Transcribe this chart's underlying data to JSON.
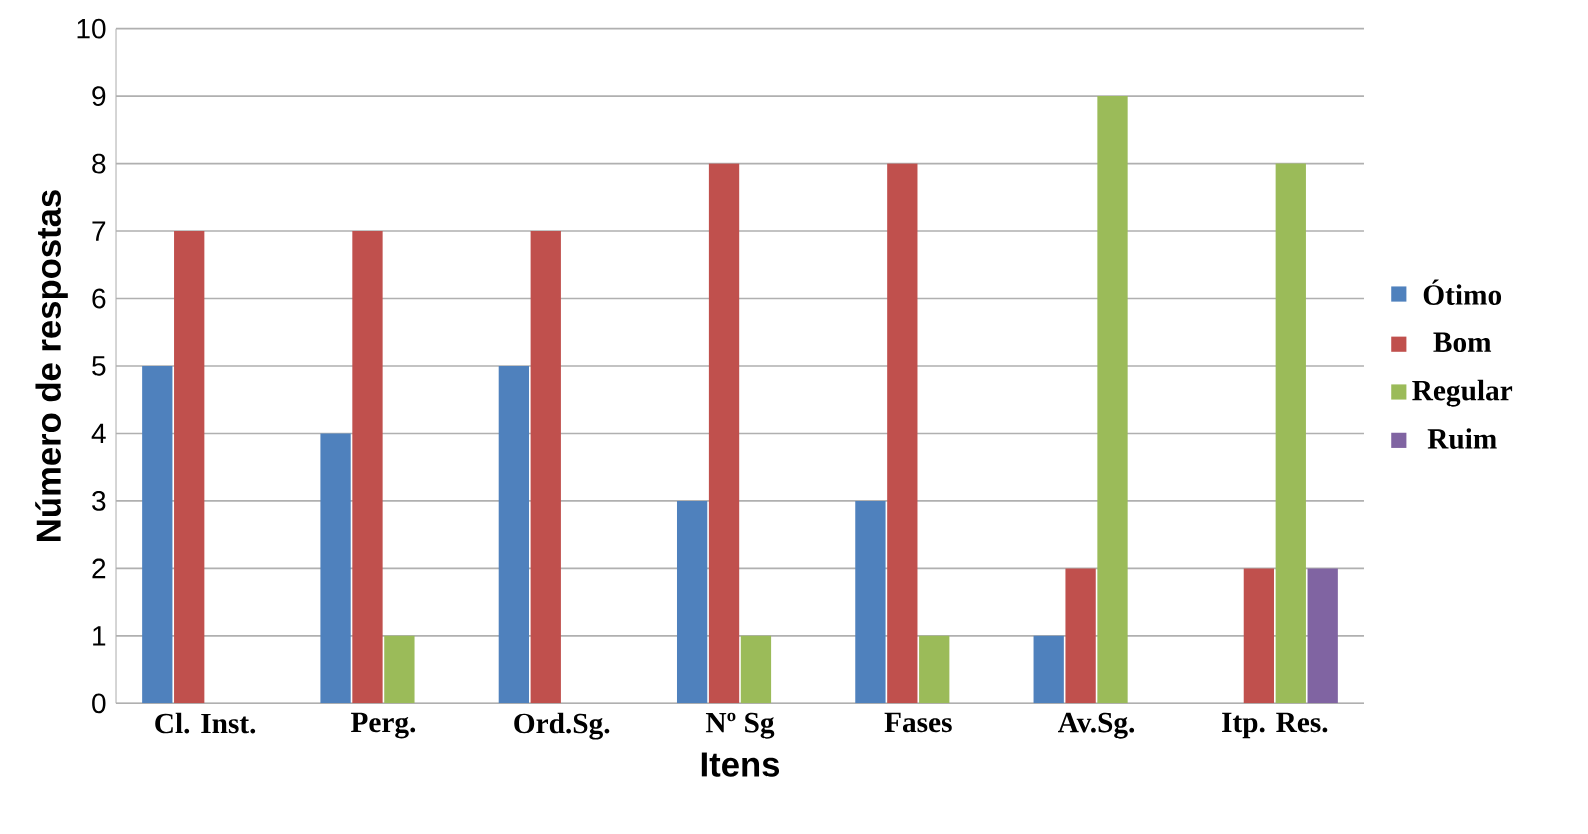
{
  "chart_data": {
    "type": "bar",
    "xlabel": "Itens",
    "ylabel": "Número de respostas",
    "categories": [
      "Cl. Inst.",
      "Perg.",
      "Ord.Sg.",
      "Nº Sg",
      "Fases",
      "Av.Sg.",
      "Itp. Res."
    ],
    "series": [
      {
        "name": "Ótimo",
        "color": "#4f81bd",
        "values": [
          5,
          4,
          5,
          3,
          3,
          1,
          0
        ]
      },
      {
        "name": "Bom",
        "color": "#c0504d",
        "values": [
          7,
          7,
          7,
          8,
          8,
          2,
          2
        ]
      },
      {
        "name": "Regular",
        "color": "#9bbb59",
        "values": [
          0,
          1,
          0,
          1,
          1,
          9,
          8
        ]
      },
      {
        "name": "Ruim",
        "color": "#8064a2",
        "values": [
          0,
          0,
          0,
          0,
          0,
          0,
          2
        ]
      }
    ],
    "ylim": [
      0,
      10
    ],
    "yticks": [
      0,
      1,
      2,
      3,
      4,
      5,
      6,
      7,
      8,
      9,
      10
    ],
    "grid": "y",
    "legend": "right"
  }
}
